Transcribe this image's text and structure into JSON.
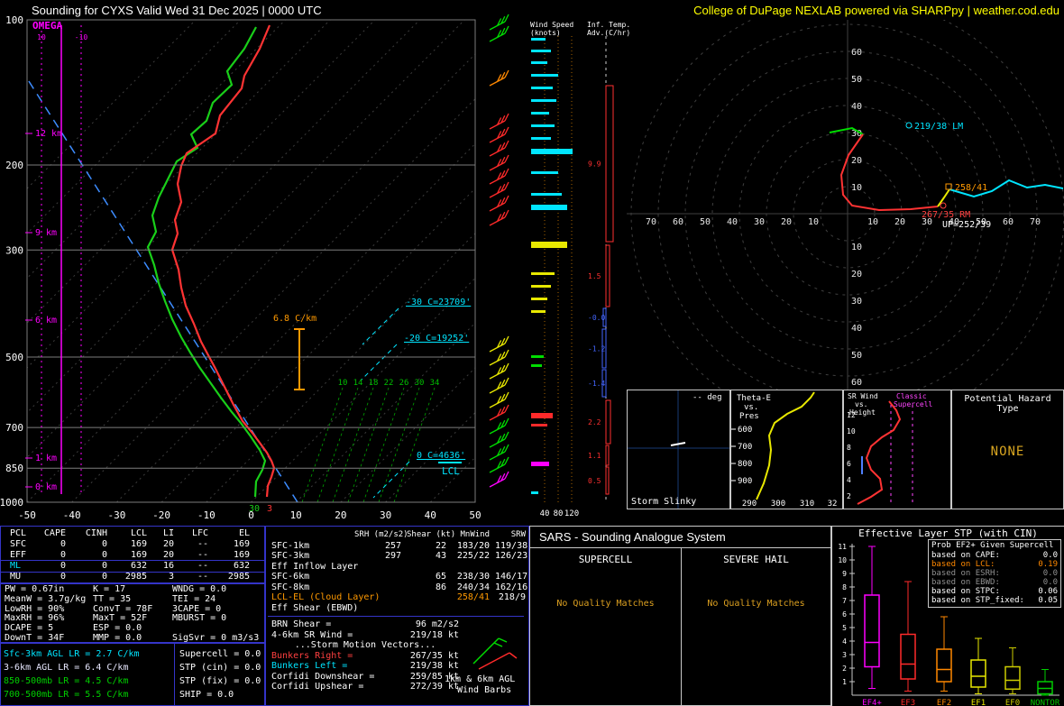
{
  "header": {
    "title": "Sounding for CYXS Valid  Wed 31 Dec 2025 | 0000 UTC",
    "brand": "College of DuPage NEXLAB powered via SHARPpy | weather.cod.edu"
  },
  "skewt": {
    "omega_label": "OMEGA",
    "omega_ticks": [
      "10",
      "-10"
    ],
    "pressure_ticks": [
      "100",
      "200",
      "300",
      "500",
      "700",
      "850",
      "1000"
    ],
    "temp_ticks": [
      "-50",
      "-40",
      "-30",
      "-20",
      "-10",
      "0",
      "10",
      "20",
      "30",
      "40",
      "50"
    ],
    "height_labels": [
      "12 km",
      "9 km",
      "6 km",
      "1 km",
      "0 km"
    ],
    "mixing_ratio_labels": [
      "10",
      "14",
      "18",
      "22",
      "26",
      "30",
      "34"
    ],
    "iso_labels": [
      "-30 C=23709'",
      "-20 C=19252'",
      "0 C=4636'"
    ],
    "lcl_label": "LCL",
    "lapse_label": "6.8 C/km",
    "sfc_dewpoint": "30",
    "sfc_temp": "3"
  },
  "wind_panel": {
    "title_line1": "Wind Speed",
    "title_line2": "(knots)",
    "x_ticks": [
      "40",
      "80",
      "120"
    ]
  },
  "adv_panel": {
    "title_line1": "Inf. Temp.",
    "title_line2": "Adv.(C/hr)",
    "values": [
      "9.9",
      "1.5",
      "-0.0",
      "-1.2",
      "-1.4",
      "2.2",
      "1.1",
      "0.5"
    ]
  },
  "hodograph": {
    "ring_values": [
      "10",
      "20",
      "30",
      "40",
      "50",
      "60",
      "70"
    ],
    "markers": [
      {
        "label": "219/38 LM",
        "color": "#00e5ff"
      },
      {
        "label": "258/41",
        "color": "#ff9900"
      },
      {
        "label": "267/35 RM",
        "color": "#ff4040"
      },
      {
        "label": "UP=252/39",
        "color": "#ffffff"
      }
    ]
  },
  "storm_slinky": {
    "title": "Storm Slinky",
    "deg": "-- deg"
  },
  "theta_e": {
    "title_lines": [
      "Theta-E",
      "vs.",
      "Pres"
    ],
    "x_ticks": [
      "290",
      "300",
      "310",
      "32"
    ],
    "y_ticks": [
      "600",
      "700",
      "800",
      "900"
    ]
  },
  "sr_wind": {
    "title_lines": [
      "SR Wind",
      "vs.",
      "Height"
    ],
    "classic_lines": [
      "Classic",
      "Supercell"
    ],
    "y_ticks": [
      "12",
      "10",
      "8",
      "6",
      "4",
      "2"
    ]
  },
  "hazard": {
    "title": "Potential Hazard Type",
    "value": "NONE"
  },
  "thermo": {
    "parcel_headers": [
      "PCL",
      "CAPE",
      "CINH",
      "LCL",
      "LI",
      "LFC",
      "EL"
    ],
    "parcel_rows": [
      {
        "label": "SFC",
        "values": [
          "0",
          "0",
          "169",
          "20",
          "--",
          "169"
        ],
        "selected": false
      },
      {
        "label": "EFF",
        "values": [
          "0",
          "0",
          "169",
          "20",
          "--",
          "169"
        ],
        "selected": false
      },
      {
        "label": "ML",
        "values": [
          "0",
          "0",
          "632",
          "16",
          "--",
          "632"
        ],
        "selected": true
      },
      {
        "label": "MU",
        "values": [
          "0",
          "0",
          "2985",
          "3",
          "--",
          "2985"
        ],
        "selected": false
      }
    ],
    "stats_rows": [
      [
        "PW = 0.67in",
        "K = 17",
        "WNDG = 0.0"
      ],
      [
        "MeanW = 3.7g/kg",
        "TT = 35",
        "TEI = 24"
      ],
      [
        "LowRH = 90%",
        "ConvT = 78F",
        "3CAPE = 0"
      ],
      [
        "MaxRH = 96%",
        "MaxT = 52F",
        "MBURST = 0"
      ],
      [
        "DCAPE = 5",
        "ESP = 0.0",
        ""
      ],
      [
        "DownT = 34F",
        "MMP = 0.0",
        "SigSvr = 0 m3/s3"
      ]
    ],
    "lapse_rates": [
      {
        "text": "Sfc-3km AGL LR = 2.7 C/km",
        "color": "#00e5ff"
      },
      {
        "text": "3-6km AGL LR = 6.4 C/km",
        "color": "#e8e8ff"
      },
      {
        "text": "850-500mb LR = 4.5 C/km",
        "color": "#00d000"
      },
      {
        "text": "700-500mb LR = 5.5 C/km",
        "color": "#00d000"
      }
    ],
    "composite": [
      "Supercell = 0.0",
      "STP (cin) = 0.0",
      "STP (fix) = 0.0",
      "SHIP = 0.0"
    ]
  },
  "kinematic": {
    "headers": [
      "SRH (m2/s2)",
      "Shear (kt)",
      "MnWind",
      "SRW"
    ],
    "rows": [
      {
        "label": "SFC-1km",
        "values": [
          "257",
          "22",
          "183/20",
          "119/38"
        ],
        "accent": false
      },
      {
        "label": "SFC-3km",
        "values": [
          "297",
          "43",
          "225/22",
          "126/23"
        ],
        "accent": false
      },
      {
        "label": "Eff Inflow Layer",
        "values": [
          "",
          "",
          "",
          ""
        ],
        "accent": false
      },
      {
        "label": "SFC-6km",
        "values": [
          "",
          "65",
          "238/30",
          "146/17"
        ],
        "accent": false
      },
      {
        "label": "SFC-8km",
        "values": [
          "",
          "86",
          "240/34",
          "162/16"
        ],
        "accent": false
      },
      {
        "label": "LCL-EL (Cloud Layer)",
        "values": [
          "",
          "",
          "258/41",
          "218/9"
        ],
        "accent": true
      },
      {
        "label": "Eff Shear (EBWD)",
        "values": [
          "",
          "",
          "",
          ""
        ],
        "accent": false
      }
    ],
    "motion": [
      {
        "label": "BRN Shear =",
        "value": "96 m2/s2",
        "color": "#ffffff"
      },
      {
        "label": "4-6km SR Wind =",
        "value": "219/18 kt",
        "color": "#ffffff"
      },
      {
        "label": "...Storm Motion Vectors...",
        "value": "",
        "color": "#ffffff"
      },
      {
        "label": "Bunkers Right =",
        "value": "267/35 kt",
        "color": "#ff4040"
      },
      {
        "label": "Bunkers Left =",
        "value": "219/38 kt",
        "color": "#00e5ff"
      },
      {
        "label": "Corfidi Downshear =",
        "value": "259/85 kt",
        "color": "#ffffff"
      },
      {
        "label": "Corfidi Upshear =",
        "value": "272/39 kt",
        "color": "#ffffff"
      }
    ],
    "barb_caption_lines": [
      "1km & 6km AGL",
      "Wind Barbs"
    ]
  },
  "sars": {
    "title": "SARS - Sounding Analogue System",
    "columns": [
      {
        "title": "SUPERCELL",
        "status": "No Quality Matches"
      },
      {
        "title": "SEVERE HAIL",
        "status": "No Quality Matches"
      }
    ]
  },
  "stp": {
    "legend": {
      "title": "Prob EF2+ Given Supercell",
      "items": [
        {
          "label": "based on CAPE:",
          "value": "0.0",
          "color": "#ffffff"
        },
        {
          "label": "based on LCL:",
          "value": "0.19",
          "color": "#ff8800"
        },
        {
          "label": "based on ESRH:",
          "value": "0.0",
          "color": "#909090"
        },
        {
          "label": "based on EBWD:",
          "value": "0.0",
          "color": "#909090"
        },
        {
          "label": "based on STPC:",
          "value": "0.06",
          "color": "#ffffff"
        },
        {
          "label": "based on STP_fixed:",
          "value": "0.05",
          "color": "#ffffff"
        }
      ]
    }
  },
  "chart_data": {
    "type": "boxplot",
    "title": "Effective Layer STP (with CIN)",
    "ylim": [
      0,
      11
    ],
    "y_ticks": [
      1,
      2,
      3,
      4,
      5,
      6,
      7,
      8,
      9,
      10,
      11
    ],
    "categories": [
      "EF4+",
      "EF3",
      "EF2",
      "EF1",
      "EF0",
      "NONTOR"
    ],
    "colors": [
      "#ff00ff",
      "#ff2a2a",
      "#ff8800",
      "#e8e800",
      "#cccc00",
      "#00cc00"
    ],
    "boxes": [
      {
        "lo": 0.5,
        "q1": 2.1,
        "med": 3.9,
        "q3": 7.4,
        "hi": 11.0
      },
      {
        "lo": 0.3,
        "q1": 1.2,
        "med": 2.3,
        "q3": 4.5,
        "hi": 8.4
      },
      {
        "lo": 0.3,
        "q1": 1.0,
        "med": 1.9,
        "q3": 3.4,
        "hi": 5.8
      },
      {
        "lo": 0.1,
        "q1": 0.6,
        "med": 1.4,
        "q3": 2.6,
        "hi": 4.2
      },
      {
        "lo": 0.1,
        "q1": 0.45,
        "med": 1.1,
        "q3": 2.1,
        "hi": 3.5
      },
      {
        "lo": 0.0,
        "q1": 0.1,
        "med": 0.5,
        "q3": 1.0,
        "hi": 1.9
      }
    ]
  }
}
